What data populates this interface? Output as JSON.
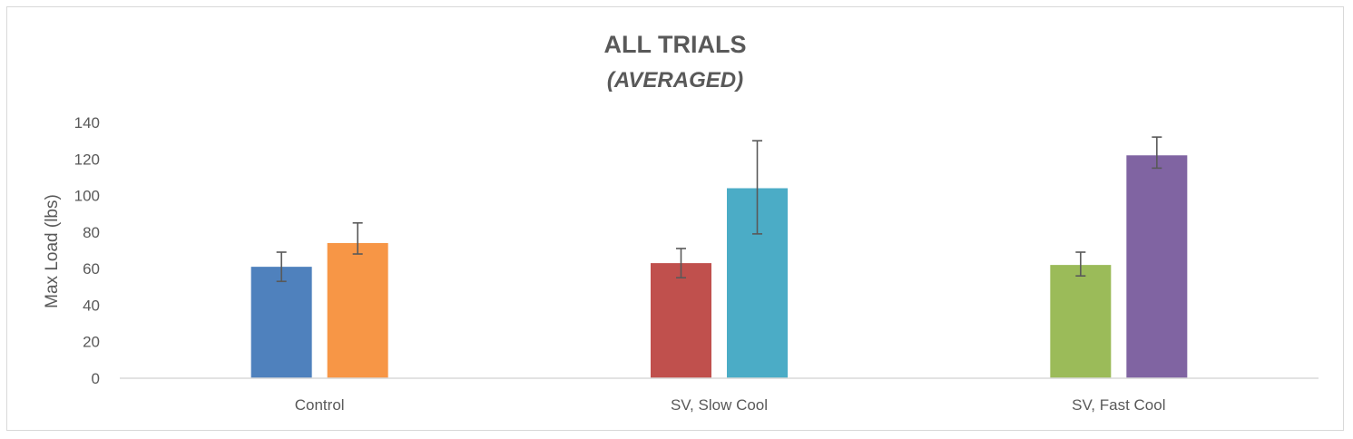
{
  "chart_data": {
    "type": "bar",
    "title": "ALL TRIALS",
    "subtitle": "(AVERAGED)",
    "xlabel": "",
    "ylabel": "Max Load (lbs)",
    "ylim": [
      0,
      140
    ],
    "yticks": [
      0,
      20,
      40,
      60,
      80,
      100,
      120,
      140
    ],
    "grid": false,
    "legend": "none",
    "categories": [
      "Control",
      "SV, Slow Cool",
      "SV, Fast Cool"
    ],
    "groups": [
      {
        "category": "Control",
        "bars": [
          {
            "value": 61,
            "error_low": 53,
            "error_high": 69,
            "color": "#4f81bd"
          },
          {
            "value": 74,
            "error_low": 68,
            "error_high": 85,
            "color": "#f79646"
          }
        ]
      },
      {
        "category": "SV, Slow Cool",
        "bars": [
          {
            "value": 63,
            "error_low": 55,
            "error_high": 71,
            "color": "#c0504d"
          },
          {
            "value": 104,
            "error_low": 79,
            "error_high": 130,
            "color": "#4bacc6"
          }
        ]
      },
      {
        "category": "SV, Fast Cool",
        "bars": [
          {
            "value": 62,
            "error_low": 56,
            "error_high": 69,
            "color": "#9bbb59"
          },
          {
            "value": 122,
            "error_low": 115,
            "error_high": 132,
            "color": "#8064a2"
          }
        ]
      }
    ]
  }
}
